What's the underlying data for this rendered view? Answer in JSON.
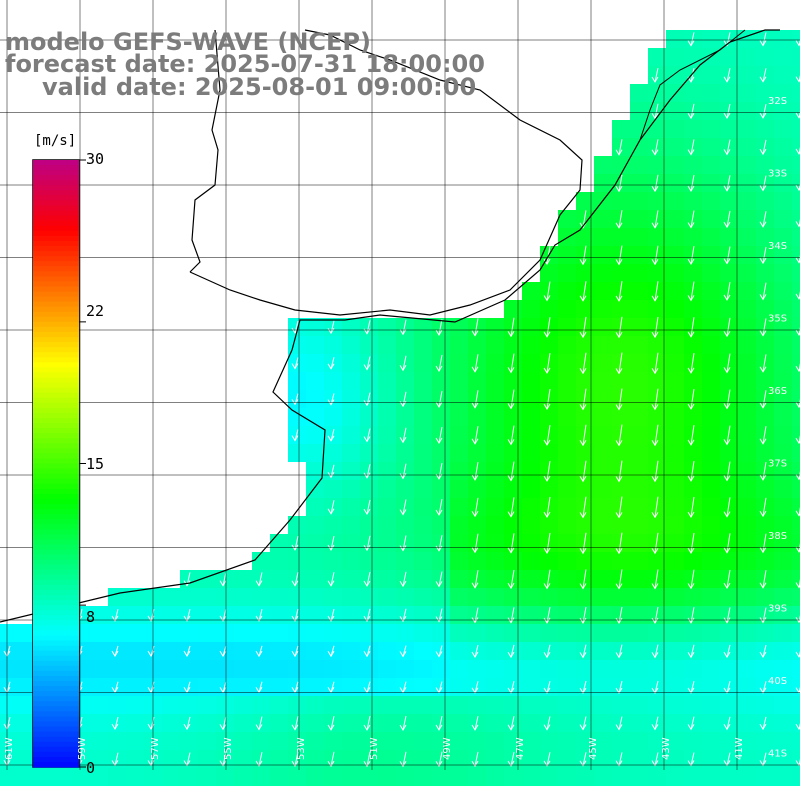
{
  "title": {
    "line1": "modelo GEFS-WAVE (NCEP)",
    "line2": "forecast date: 2025-07-31 18:00:00",
    "line3": "valid date: 2025-08-01 09:00:00"
  },
  "legend": {
    "unit": "[m/s]",
    "min": 0,
    "max": 30,
    "ticks": [
      "30",
      "22",
      "15",
      "8",
      "0"
    ],
    "tick_values": [
      30,
      22,
      15,
      8,
      0
    ],
    "colors": [
      "#0000ff",
      "#0080ff",
      "#00ffff",
      "#00ff80",
      "#00ff00",
      "#80ff00",
      "#ffff00",
      "#ff8000",
      "#ff0000",
      "#c00080"
    ]
  },
  "grid": {
    "lon_labels": [
      "61W",
      "59W",
      "57W",
      "55W",
      "53W",
      "51W",
      "49W",
      "47W",
      "45W",
      "43W",
      "41W"
    ],
    "lat_labels": [
      "32S",
      "33S",
      "34S",
      "35S",
      "36S",
      "37S",
      "38S",
      "39S",
      "40S",
      "41S"
    ]
  },
  "field": {
    "description_colors": {
      "land": "#ffffff",
      "coast": "#000000",
      "grid": "#000000",
      "arrows": "#ffffff"
    }
  }
}
